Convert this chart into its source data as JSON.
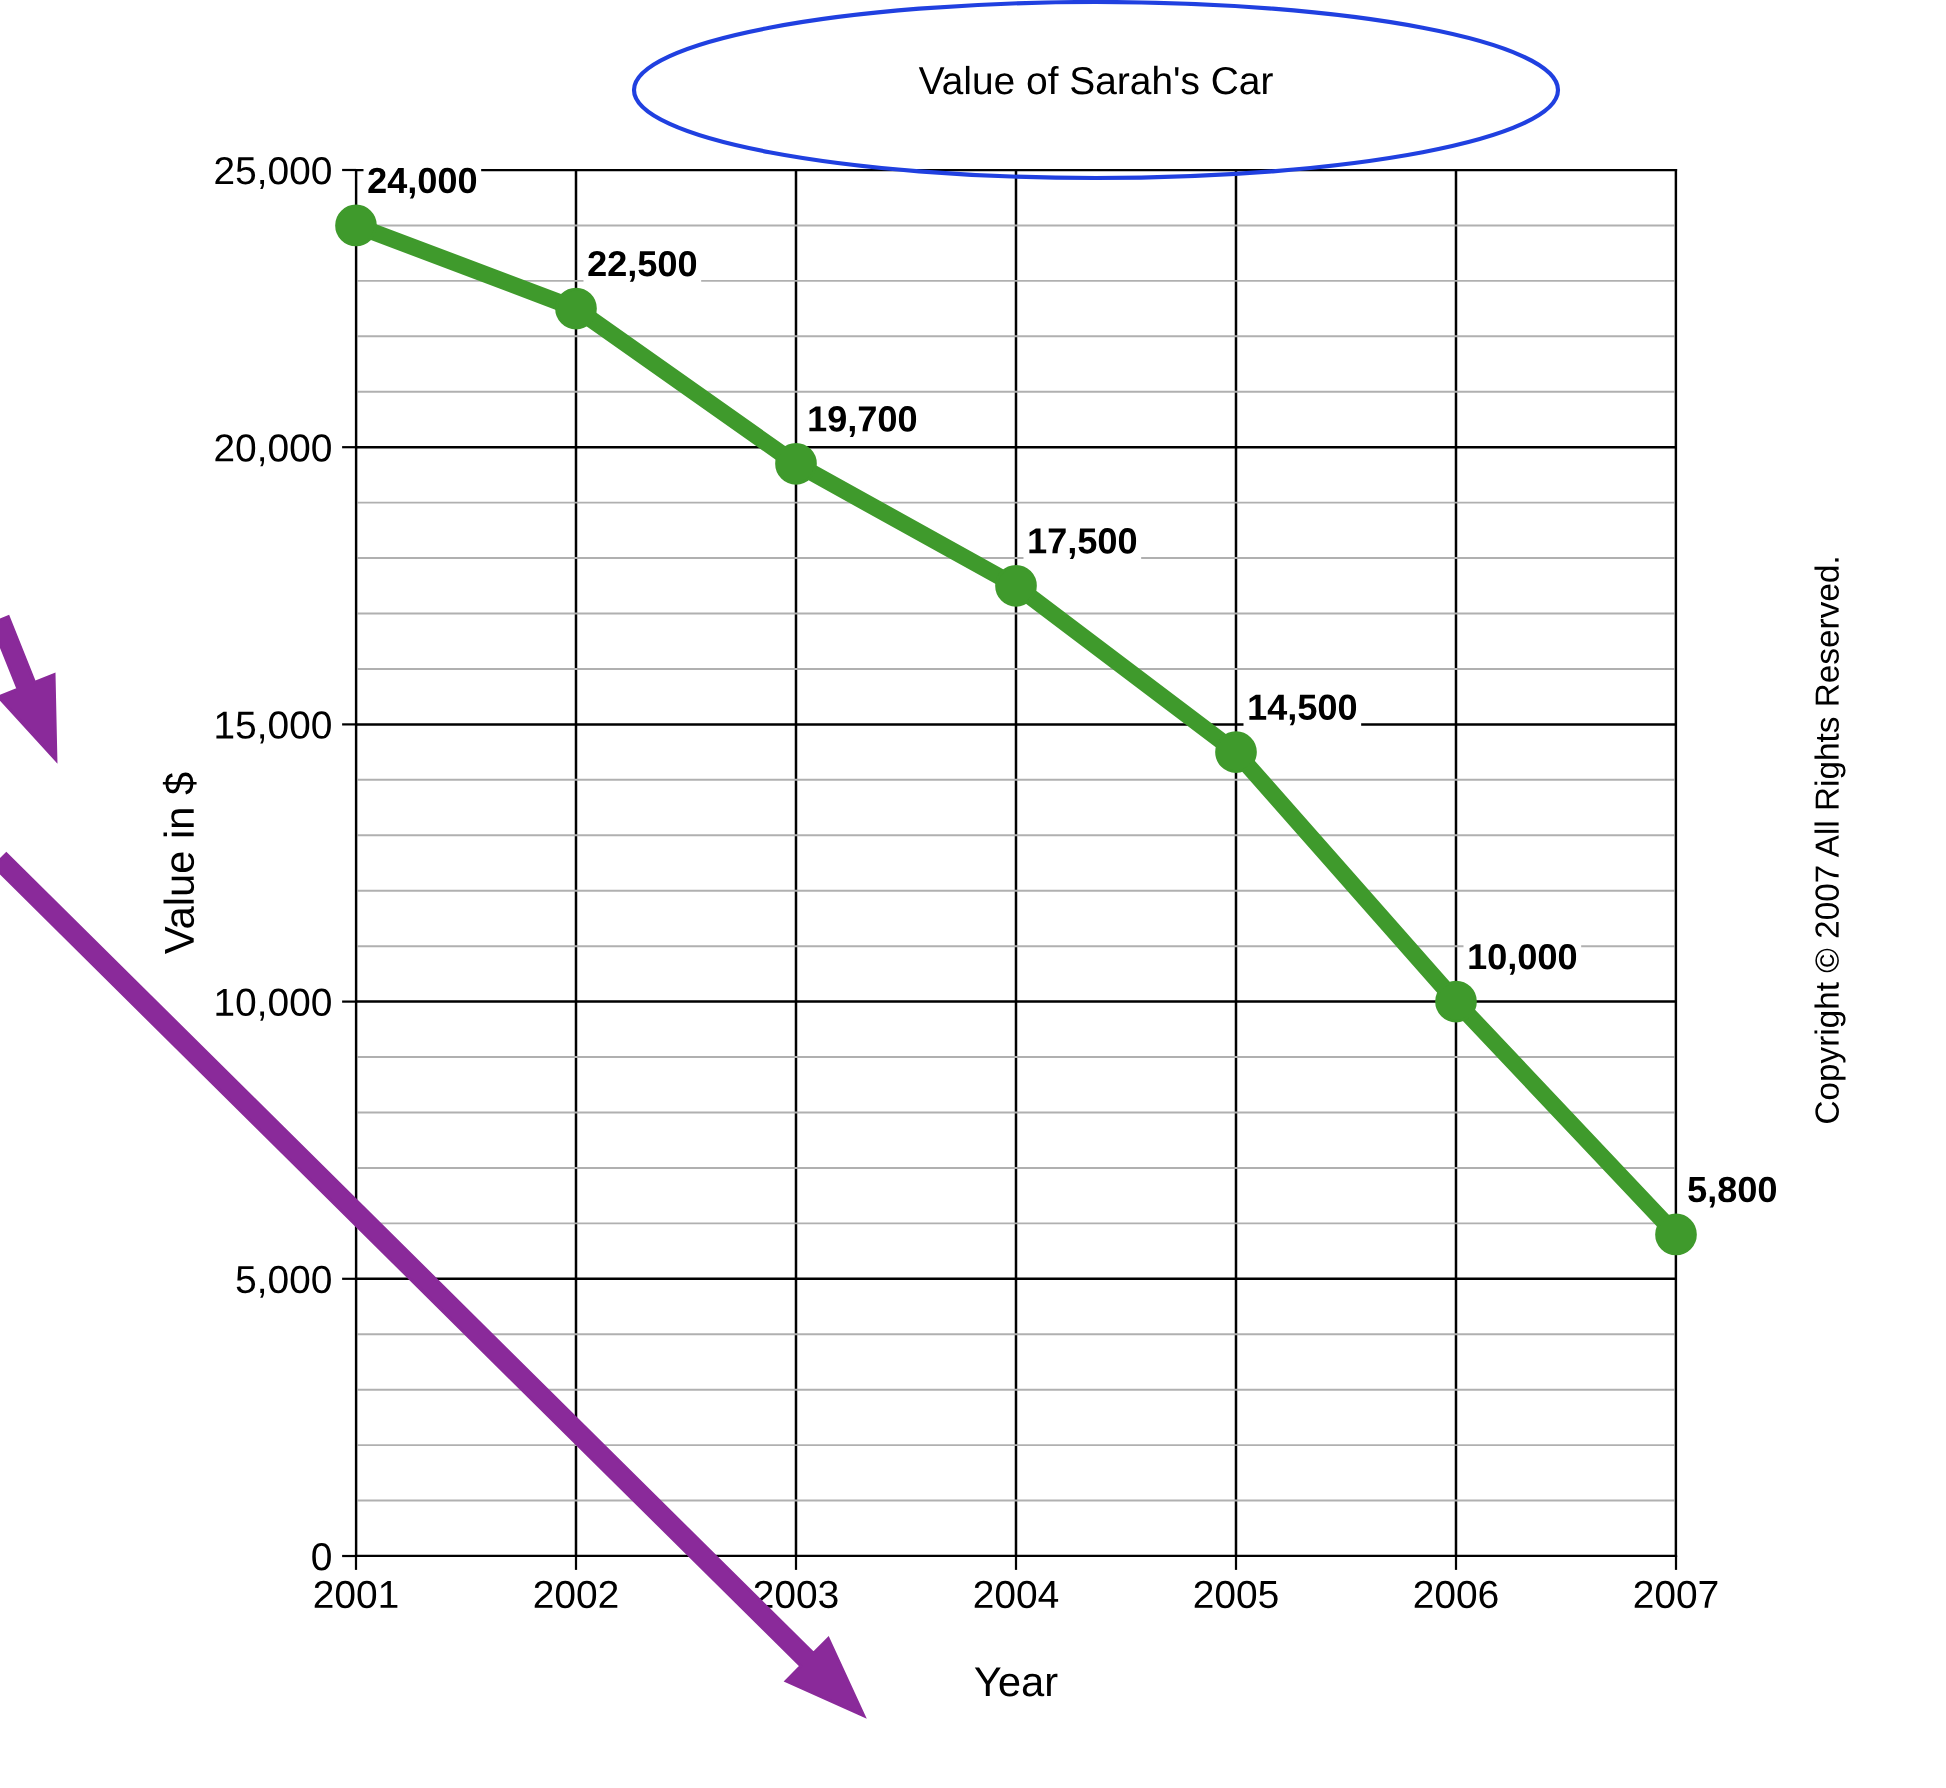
{
  "chart_data": {
    "type": "line",
    "title": "Value of Sarah's Car",
    "xlabel": "Year",
    "ylabel": "Value in $",
    "categories": [
      "2001",
      "2002",
      "2003",
      "2004",
      "2005",
      "2006",
      "2007"
    ],
    "series": [
      {
        "color": "#3f9a2c",
        "values": [
          24000,
          22500,
          19700,
          17500,
          14500,
          10000,
          5800
        ]
      }
    ],
    "ylim": [
      0,
      25000
    ],
    "yticks": [
      {
        "value": 0,
        "label": "0"
      },
      {
        "value": 1000,
        "label": null
      },
      {
        "value": 2000,
        "label": null
      },
      {
        "value": 3000,
        "label": null
      },
      {
        "value": 4000,
        "label": null
      },
      {
        "value": 5000,
        "label": "5,000"
      },
      {
        "value": 6000,
        "label": null
      },
      {
        "value": 7000,
        "label": null
      },
      {
        "value": 8000,
        "label": null
      },
      {
        "value": 9000,
        "label": null
      },
      {
        "value": 10000,
        "label": "10,000"
      },
      {
        "value": 11000,
        "label": null
      },
      {
        "value": 12000,
        "label": null
      },
      {
        "value": 13000,
        "label": null
      },
      {
        "value": 14000,
        "label": null
      },
      {
        "value": 15000,
        "label": "15,000"
      },
      {
        "value": 16000,
        "label": null
      },
      {
        "value": 17000,
        "label": null
      },
      {
        "value": 18000,
        "label": null
      },
      {
        "value": 19000,
        "label": null
      },
      {
        "value": 20000,
        "label": "20,000"
      },
      {
        "value": 21000,
        "label": null
      },
      {
        "value": 22000,
        "label": null
      },
      {
        "value": 23000,
        "label": null
      },
      {
        "value": 24000,
        "label": null
      },
      {
        "value": 25000,
        "label": "25,000"
      }
    ],
    "grid": true,
    "marker": "circle",
    "line_style": "solid",
    "value_labels": [
      "24,000",
      "22,500",
      "19,700",
      "17,500",
      "14,500",
      "10,000",
      "5,800"
    ],
    "annotations": [
      "Copyright © 2007 All Rights Reserved."
    ]
  }
}
